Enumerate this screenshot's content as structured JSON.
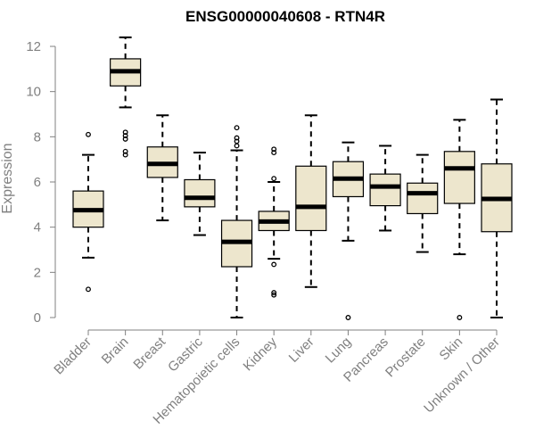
{
  "chart_data": {
    "type": "boxplot",
    "title": "ENSG00000040608 - RTN4R",
    "xlabel": "",
    "ylabel": "Expression",
    "ylim": [
      0,
      12.5
    ],
    "yticks": [
      0,
      2,
      4,
      6,
      8,
      10,
      12
    ],
    "categories": [
      "Bladder",
      "Brain",
      "Breast",
      "Gastric",
      "Hematopoietic cells",
      "Kidney",
      "Liver",
      "Lung",
      "Pancreas",
      "Prostate",
      "Skin",
      "Unknown / Other"
    ],
    "boxes": [
      {
        "category": "Bladder",
        "whisker_low": 2.65,
        "q1": 4.0,
        "median": 4.75,
        "q3": 5.6,
        "whisker_high": 7.2,
        "outliers": [
          8.1,
          1.25
        ]
      },
      {
        "category": "Brain",
        "whisker_low": 9.3,
        "q1": 10.25,
        "median": 10.9,
        "q3": 11.45,
        "whisker_high": 12.4,
        "outliers": [
          8.2,
          8.05,
          7.9,
          7.35,
          7.2
        ]
      },
      {
        "category": "Breast",
        "whisker_low": 4.3,
        "q1": 6.2,
        "median": 6.8,
        "q3": 7.55,
        "whisker_high": 8.95,
        "outliers": []
      },
      {
        "category": "Gastric",
        "whisker_low": 3.65,
        "q1": 4.9,
        "median": 5.3,
        "q3": 6.1,
        "whisker_high": 7.3,
        "outliers": []
      },
      {
        "category": "Hematopoietic cells",
        "whisker_low": 0.0,
        "q1": 2.25,
        "median": 3.35,
        "q3": 4.3,
        "whisker_high": 7.4,
        "outliers": [
          8.4,
          7.95,
          7.8,
          7.6
        ]
      },
      {
        "category": "Kidney",
        "whisker_low": 2.6,
        "q1": 3.85,
        "median": 4.25,
        "q3": 4.7,
        "whisker_high": 6.0,
        "outliers": [
          7.45,
          7.3,
          6.15,
          2.35,
          1.1,
          1.0
        ]
      },
      {
        "category": "Liver",
        "whisker_low": 1.35,
        "q1": 3.85,
        "median": 4.9,
        "q3": 6.7,
        "whisker_high": 8.95,
        "outliers": []
      },
      {
        "category": "Lung",
        "whisker_low": 3.4,
        "q1": 5.35,
        "median": 6.15,
        "q3": 6.9,
        "whisker_high": 7.75,
        "outliers": [
          0.0
        ]
      },
      {
        "category": "Pancreas",
        "whisker_low": 3.85,
        "q1": 4.95,
        "median": 5.8,
        "q3": 6.35,
        "whisker_high": 7.6,
        "outliers": []
      },
      {
        "category": "Prostate",
        "whisker_low": 2.9,
        "q1": 4.6,
        "median": 5.5,
        "q3": 5.95,
        "whisker_high": 7.2,
        "outliers": []
      },
      {
        "category": "Skin",
        "whisker_low": 2.8,
        "q1": 5.05,
        "median": 6.6,
        "q3": 7.35,
        "whisker_high": 8.75,
        "outliers": [
          0.0
        ]
      },
      {
        "category": "Unknown / Other",
        "whisker_low": 0.0,
        "q1": 3.8,
        "median": 5.25,
        "q3": 6.8,
        "whisker_high": 9.65,
        "outliers": []
      }
    ],
    "colors": {
      "box_fill": "#ede6cd",
      "box_stroke": "#000000",
      "median": "#000000",
      "axis": "#808080",
      "text": "#808080",
      "title": "#000000"
    },
    "grid": false,
    "legend": "none"
  }
}
